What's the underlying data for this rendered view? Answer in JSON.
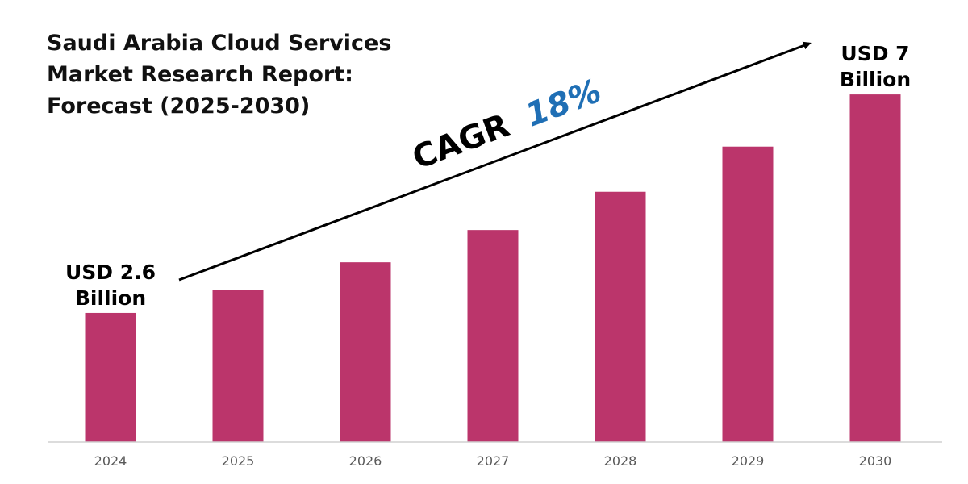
{
  "colors": {
    "bar": "#bb356b",
    "cagr_value": "#1f6fb5",
    "axis": "#d0d0d0",
    "text": "#000000"
  },
  "chart_data": {
    "type": "bar",
    "title_lines": [
      "Saudi Arabia Cloud Services",
      "Market Research Report:",
      "Forecast (2025-2030)"
    ],
    "categories": [
      "2024",
      "2025",
      "2026",
      "2027",
      "2028",
      "2029",
      "2030"
    ],
    "values": [
      2.6,
      3.07,
      3.62,
      4.27,
      5.04,
      5.95,
      7.0
    ],
    "unit": "USD Billion",
    "data_labels": [
      {
        "index": 0,
        "lines": [
          "USD 2.6",
          "Billion"
        ]
      },
      {
        "index": 6,
        "lines": [
          "USD 7",
          "Billion"
        ]
      }
    ],
    "annotation": {
      "prefix": "CAGR",
      "value": "18%"
    },
    "ylim": [
      0,
      7.7
    ],
    "grid": false,
    "legend": "none"
  }
}
